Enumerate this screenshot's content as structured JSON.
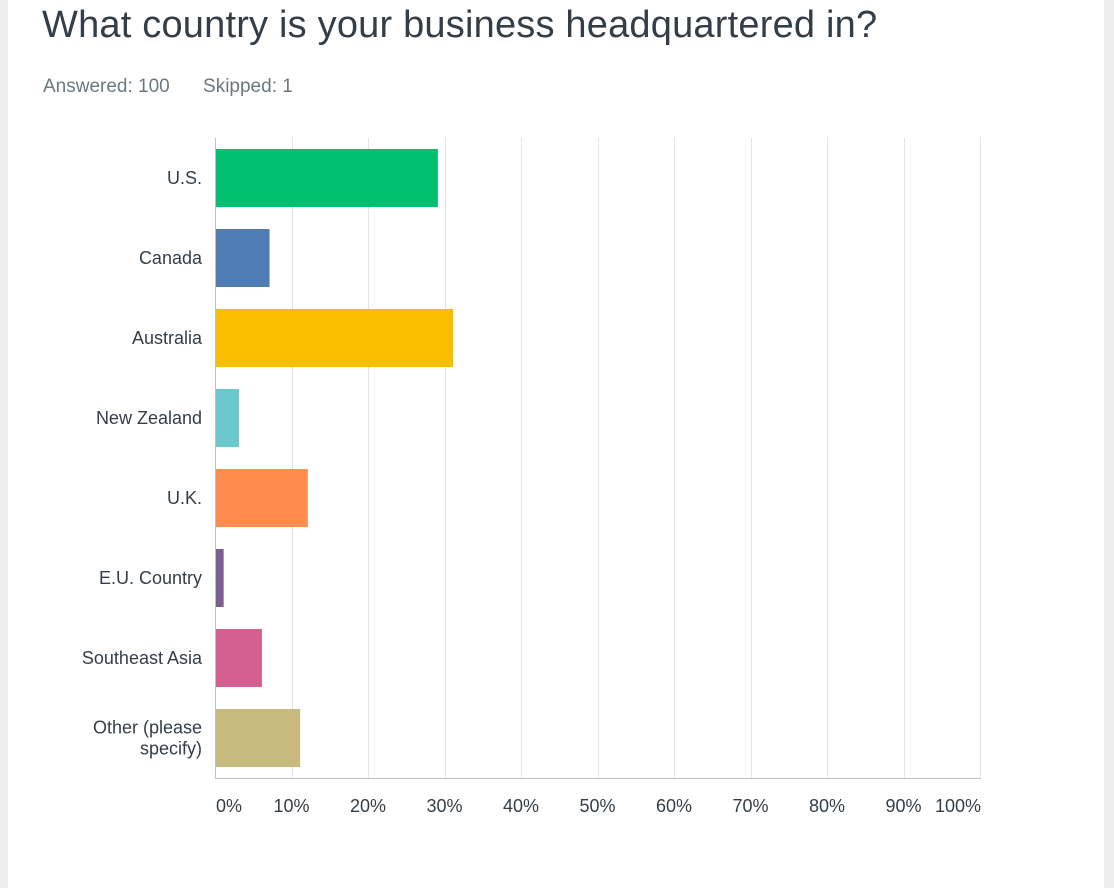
{
  "question": {
    "title": "What country is your business headquartered in?",
    "answered": "Answered: 100",
    "skipped": "Skipped: 1"
  },
  "chart_data": {
    "type": "bar",
    "orientation": "horizontal",
    "title": "What country is your business headquartered in?",
    "categories": [
      [
        "U.S."
      ],
      [
        "Canada"
      ],
      [
        "Australia"
      ],
      [
        "New Zealand"
      ],
      [
        "U.K."
      ],
      [
        "E.U. Country"
      ],
      [
        "Southeast Asia"
      ],
      [
        "Other (please",
        "specify)"
      ]
    ],
    "values": [
      29,
      7,
      31,
      3,
      12,
      1,
      6,
      11
    ],
    "colors": [
      "#00bf6f",
      "#507cb6",
      "#f9be00",
      "#6bc8cd",
      "#ff8b4f",
      "#7d5e90",
      "#d25f90",
      "#c8b97d"
    ],
    "xlim": [
      0,
      100
    ],
    "x_ticks": [
      0,
      10,
      20,
      30,
      40,
      50,
      60,
      70,
      80,
      90,
      100
    ],
    "x_tick_labels": [
      "0%",
      "10%",
      "20%",
      "30%",
      "40%",
      "50%",
      "60%",
      "70%",
      "80%",
      "90%",
      "100%"
    ],
    "grid": true,
    "legend": "none"
  }
}
